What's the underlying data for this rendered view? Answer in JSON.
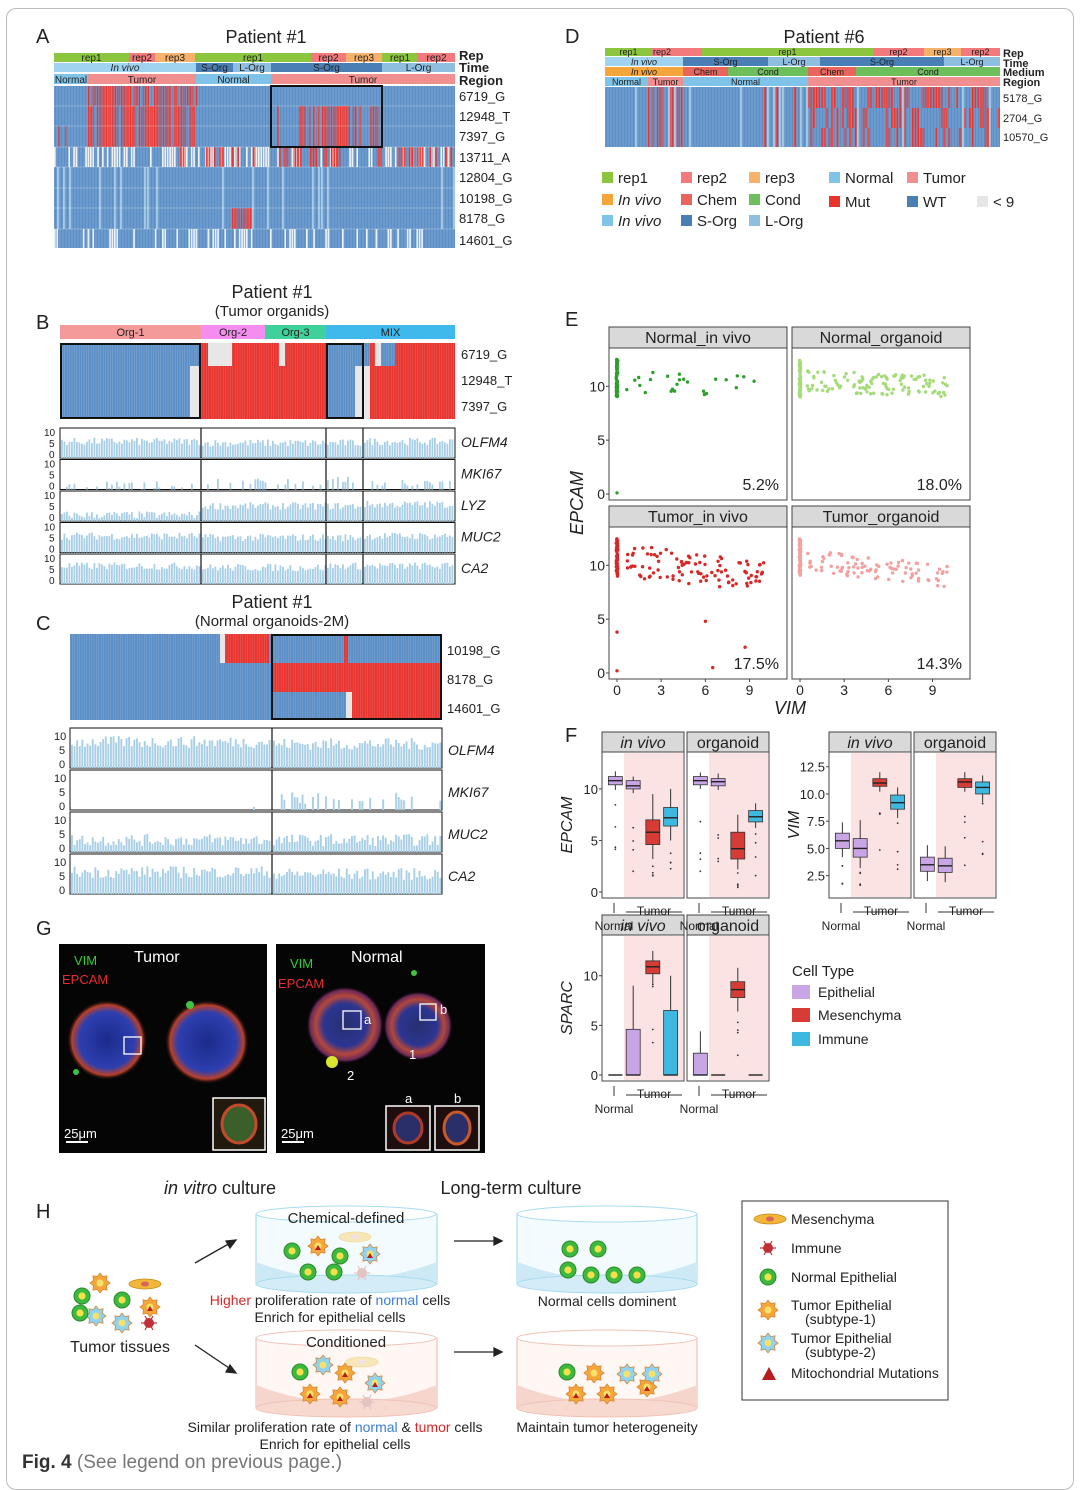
{
  "colors": {
    "mut": "#e8332e",
    "wt": "#5b8fc6",
    "low": "#e6e6e6",
    "normal": "#7fc4e8",
    "tumor": "#f08f8f",
    "rep1": "#8cc63f",
    "rep2": "#f2797c",
    "rep3": "#f6b26b",
    "invivo": "#9fd3ef",
    "sorg": "#4a7fb5",
    "lorg": "#8fbfe0",
    "chem": "#e8645c",
    "cond": "#6cbf5a",
    "org1": "#f49a9a",
    "org2": "#f58cf0",
    "org3": "#3fd19a",
    "mix": "#3fb8ec",
    "hist": "#a9cfe6",
    "green": "#2e9e2e",
    "lightgreen": "#a6db7a",
    "red": "#d62828",
    "pink": "#f2a0a0",
    "epithelial": "#c8a6e6",
    "mesenchyma": "#d63b35",
    "immune": "#3fb8e0",
    "shade": "#fbe3e3"
  },
  "panelA": {
    "letter": "A",
    "title": "Patient #1",
    "rep_labels": [
      "rep1",
      "rep2",
      "rep3",
      "rep1",
      "rep2",
      "rep3",
      "rep1",
      "rep2"
    ],
    "time_labels": [
      "In vivo",
      "S-Org",
      "L-Org",
      "S-Org",
      "L-Org"
    ],
    "region_labels": [
      "Normal",
      "Tumor",
      "Normal",
      "Tumor"
    ],
    "track_names": [
      "Rep",
      "Time",
      "Region"
    ],
    "rows": [
      "6719_G",
      "12948_T",
      "7397_G",
      "13711_A",
      "12804_G",
      "10198_G",
      "8178_G",
      "14601_G"
    ]
  },
  "panelD": {
    "letter": "D",
    "title": "Patient #6",
    "rep_labels": [
      "rep1",
      "rep2",
      "rep1",
      "rep2",
      "rep3",
      "rep2"
    ],
    "time_labels": [
      "In vivo",
      "S-Org",
      "L-Org",
      "S-Org",
      "L-Org"
    ],
    "medium_labels": [
      "In vivo",
      "Chem",
      "Cond",
      "Chem",
      "Cond"
    ],
    "region_labels": [
      "Normal",
      "Tumor",
      "Normal",
      "Tumor"
    ],
    "track_names": [
      "Rep",
      "Time",
      "Medium",
      "Region"
    ],
    "rows": [
      "5178_G",
      "2704_G",
      "10570_G"
    ],
    "legend": [
      {
        "label": "rep1",
        "color": "#8cc63f",
        "italic": false
      },
      {
        "label": "rep2",
        "color": "#f2797c",
        "italic": false
      },
      {
        "label": "rep3",
        "color": "#f6b26b",
        "italic": false
      },
      {
        "label": "Normal",
        "color": "#7fc4e8",
        "italic": false
      },
      {
        "label": "Tumor",
        "color": "#f08f8f",
        "italic": false
      },
      {
        "label": "In vivo",
        "color": "#f6a53a",
        "italic": true
      },
      {
        "label": "Chem",
        "color": "#e8645c",
        "italic": false
      },
      {
        "label": "Cond",
        "color": "#6cbf5a",
        "italic": false
      },
      {
        "label": "Mut",
        "color": "#e8332e",
        "italic": false
      },
      {
        "label": "WT",
        "color": "#4a7fb5",
        "italic": false
      },
      {
        "label": "< 9",
        "color": "#e6e6e6",
        "italic": false
      },
      {
        "label": "In vivo",
        "color": "#7fc4e8",
        "italic": true
      },
      {
        "label": "S-Org",
        "color": "#4a7fb5",
        "italic": false
      },
      {
        "label": "L-Org",
        "color": "#8fbfe0",
        "italic": false
      }
    ]
  },
  "panelB": {
    "letter": "B",
    "title": "Patient #1",
    "subtitle": "(Tumor organids)",
    "groups": [
      "Org-1",
      "Org-2",
      "Org-3",
      "MIX"
    ],
    "rows": [
      "6719_G",
      "12948_T",
      "7397_G"
    ],
    "genes": [
      "OLFM4",
      "MKI67",
      "LYZ",
      "MUC2",
      "CA2"
    ],
    "yticks": [
      "10",
      "5",
      "0"
    ]
  },
  "panelC": {
    "letter": "C",
    "title": "Patient #1",
    "subtitle": "(Normal organoids-2M)",
    "rows": [
      "10198_G",
      "8178_G",
      "14601_G"
    ],
    "genes": [
      "OLFM4",
      "MKI67",
      "MUC2",
      "CA2"
    ],
    "yticks": [
      "10",
      "5",
      "0"
    ]
  },
  "panelE": {
    "letter": "E",
    "xlabel": "VIM",
    "ylabel": "EPCAM",
    "facets": [
      {
        "title": "Normal_in vivo",
        "pct": "5.2%",
        "color": "#2e9e2e"
      },
      {
        "title": "Normal_organoid",
        "pct": "18.0%",
        "color": "#a6db7a"
      },
      {
        "title": "Tumor_in vivo",
        "pct": "17.5%",
        "color": "#d62828"
      },
      {
        "title": "Tumor_organoid",
        "pct": "14.3%",
        "color": "#f2a0a0"
      }
    ],
    "xticks": [
      "0",
      "3",
      "6",
      "9"
    ],
    "yticks": [
      "10",
      "5",
      "0"
    ]
  },
  "panelF": {
    "letter": "F",
    "facet_titles": [
      "in vivo",
      "organoid"
    ],
    "epcam": {
      "ylabel": "EPCAM",
      "yticks": [
        "10",
        "5",
        "0"
      ],
      "in_vivo": [
        [
          9.9,
          10.4,
          10.8,
          11.2,
          11.7
        ],
        [
          9.6,
          10.0,
          10.3,
          10.8,
          11.2
        ],
        [
          3.2,
          4.6,
          5.8,
          7.0,
          9.5
        ],
        [
          5.0,
          6.4,
          7.2,
          8.2,
          10.0
        ]
      ],
      "organoid": [
        [
          10.0,
          10.4,
          10.8,
          11.2,
          11.6
        ],
        [
          9.9,
          10.3,
          10.7,
          11.0,
          11.5
        ],
        [
          2.2,
          3.2,
          4.2,
          5.8,
          7.5
        ],
        [
          6.2,
          6.8,
          7.3,
          7.9,
          8.6
        ]
      ]
    },
    "vim": {
      "ylabel": "VIM",
      "yticks": [
        "12.5",
        "10.0",
        "7.5",
        "5.0",
        "2.5"
      ],
      "in_vivo": [
        [
          4.2,
          5.0,
          5.7,
          6.4,
          7.4
        ],
        [
          3.2,
          4.2,
          5.0,
          5.9,
          7.6
        ],
        [
          10.2,
          10.7,
          11.0,
          11.4,
          12.0
        ],
        [
          7.8,
          8.6,
          9.2,
          9.9,
          10.6
        ]
      ],
      "organoid": [
        [
          2.0,
          2.9,
          3.5,
          4.2,
          5.3
        ],
        [
          1.9,
          2.8,
          3.4,
          4.1,
          5.2
        ],
        [
          10.2,
          10.6,
          11.1,
          11.4,
          12.0
        ],
        [
          9.2,
          10.0,
          10.6,
          11.1,
          11.7
        ]
      ]
    },
    "sparc": {
      "ylabel": "SPARC",
      "yticks": [
        "10",
        "5",
        "0"
      ],
      "in_vivo": [
        [
          0.0,
          0.0,
          0.0,
          0.0,
          0.0
        ],
        [
          0.0,
          0.0,
          0.0,
          4.6,
          9.0
        ],
        [
          9.2,
          10.2,
          10.9,
          11.5,
          12.5
        ],
        [
          0.0,
          0.0,
          0.0,
          6.5,
          10.0
        ]
      ],
      "organoid": [
        [
          0.0,
          0.0,
          0.0,
          2.2,
          4.4
        ],
        [
          0.0,
          0.0,
          0.0,
          0.0,
          0.0
        ],
        [
          6.4,
          7.8,
          8.6,
          9.4,
          10.8
        ],
        [
          0.0,
          0.0,
          0.0,
          0.0,
          0.0
        ]
      ]
    },
    "x_normal": "Normal",
    "x_tumor": "Tumor",
    "legend_title": "Cell Type",
    "legend": [
      "Epithelial",
      "Mesenchyma",
      "Immune"
    ]
  },
  "panelG": {
    "letter": "G",
    "tumor": {
      "title": "Tumor",
      "vim": "VIM",
      "epcam": "EPCAM",
      "scale": "25μm"
    },
    "normal": {
      "title": "Normal",
      "vim": "VIM",
      "epcam": "EPCAM",
      "scale": "25μm",
      "labels": [
        "a",
        "b",
        "1",
        "2",
        "a",
        "b"
      ]
    }
  },
  "panelH": {
    "letter": "H",
    "heading1_ital": "in vitro",
    "heading1_rest": " culture",
    "heading2": "Long-term culture",
    "dish1": "Chemical-defined",
    "dish2": "Conditioned",
    "source": "Tumor tissues",
    "text1_a": "Higher",
    "text1_b": " proliferation rate of ",
    "text1_c": "normal",
    "text1_d": " cells",
    "text1_line2": "Enrich for epithelial cells",
    "text2_a": "Similar proliferation rate of ",
    "text2_b": "normal",
    "text2_c": " & ",
    "text2_d": "tumor",
    "text2_e": " cells",
    "text2_line2": "Enrich for epithelial cells",
    "result1": "Normal cells dominent",
    "result2": "Maintain tumor heterogeneity",
    "legend": [
      "Mesenchyma",
      "Immune",
      "Normal Epithelial",
      "Tumor Epithelial",
      "(subtype-1)",
      "Tumor Epithelial",
      "(subtype-2)",
      "Mitochondrial Mutations"
    ]
  },
  "caption": {
    "fig": "Fig. 4",
    "text": "(See legend on previous page.)"
  }
}
